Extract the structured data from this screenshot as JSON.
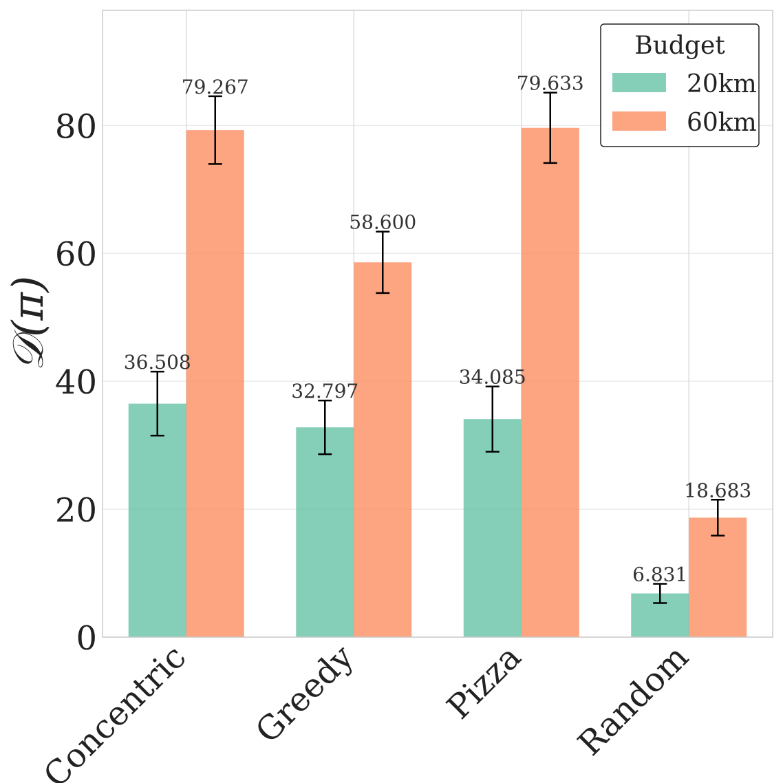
{
  "chart_data": {
    "type": "bar",
    "categories": [
      "Concentric",
      "Greedy",
      "Pizza",
      "Random"
    ],
    "series": [
      {
        "name": "20km",
        "color": "#66c2a5",
        "values": [
          36.508,
          32.797,
          34.085,
          6.831
        ],
        "error": [
          5.0,
          4.2,
          5.1,
          1.5
        ]
      },
      {
        "name": "60km",
        "color": "#fc8d62",
        "values": [
          79.267,
          58.6,
          79.633,
          18.683
        ],
        "error": [
          5.3,
          4.8,
          5.5,
          2.8
        ]
      }
    ],
    "value_labels": [
      [
        "36.508",
        "32.797",
        "34.085",
        "6.831"
      ],
      [
        "79.267",
        "58.600",
        "79.633",
        "18.683"
      ]
    ],
    "ylabel": "𝒟(π)",
    "xlabel": "",
    "ylim": [
      0,
      98
    ],
    "yticks": [
      "0",
      "20",
      "40",
      "60",
      "80"
    ],
    "ytick_values": [
      0,
      20,
      40,
      60,
      80
    ],
    "grid": true,
    "legend": {
      "title": "Budget",
      "position": "top-right"
    }
  }
}
